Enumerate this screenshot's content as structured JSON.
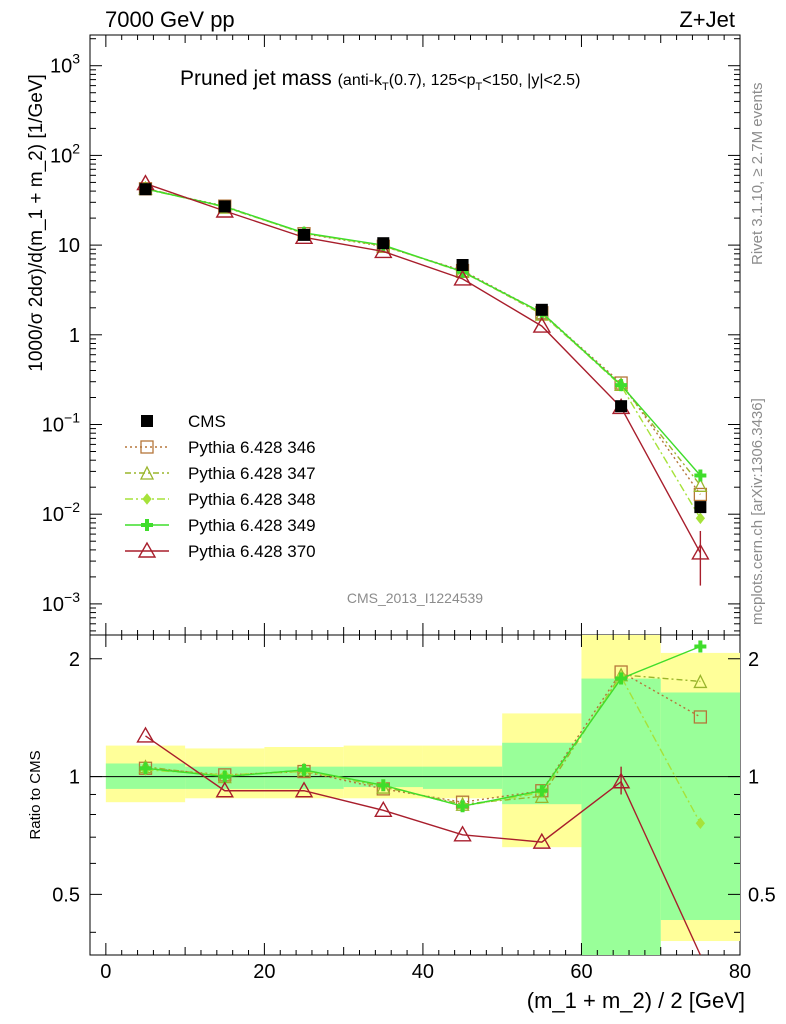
{
  "header": {
    "left": "7000 GeV pp",
    "right": "Z+Jet"
  },
  "side": {
    "rivet": "Rivet 3.1.10, ≥ 2.7M events",
    "mcplots": "mcplots.cern.ch [arXiv:1306.3436]"
  },
  "chart_data": {
    "type": "line",
    "title": "Pruned jet mass",
    "title_cuts": {
      "part1": "(anti-k",
      "sub1": "T",
      "part2": "(0.7), 125<p",
      "sub2": "T",
      "part3": "<150, |y|<2.5)"
    },
    "watermark": "CMS_2013_I1224539",
    "xlabel": "(m_1 + m_2) / 2 [GeV]",
    "ylabel": "1000/σ 2dσ)/d(m_1 + m_2) [1/GeV]",
    "ratio_ylabel": "Ratio to CMS",
    "xlim": [
      -2,
      80
    ],
    "ylim": [
      0.00045,
      2200
    ],
    "ratio_ylim": [
      0.35,
      2.3
    ],
    "log_y": true,
    "x_ticks": [
      "0",
      "20",
      "40",
      "60",
      "80"
    ],
    "y_ticks_main": [
      {
        "v": 0.001,
        "b": "10",
        "e": "−3"
      },
      {
        "v": 0.01,
        "b": "10",
        "e": "−2"
      },
      {
        "v": 0.1,
        "b": "10",
        "e": "−1"
      },
      {
        "v": 1,
        "b": "1",
        "e": ""
      },
      {
        "v": 10,
        "b": "10",
        "e": ""
      },
      {
        "v": 100,
        "b": "10",
        "e": "2"
      },
      {
        "v": 1000,
        "b": "10",
        "e": "3"
      }
    ],
    "ratio_ticks": [
      "0.5",
      "1",
      "2"
    ],
    "x": [
      5,
      15,
      25,
      35,
      45,
      55,
      65,
      75
    ],
    "bin_edges": [
      0,
      10,
      20,
      30,
      40,
      50,
      60,
      70,
      80
    ],
    "data": {
      "name": "CMS",
      "values": [
        42,
        27,
        13,
        10.5,
        6,
        1.9,
        0.16,
        0.012
      ],
      "errors": [
        0.5,
        0.4,
        0.2,
        0.2,
        0.1,
        0.04,
        0.006,
        0.003
      ]
    },
    "uncertainty_bands": {
      "green": [
        [
          0.93,
          1.08
        ],
        [
          0.93,
          1.06
        ],
        [
          0.93,
          1.06
        ],
        [
          0.94,
          1.06
        ],
        [
          0.93,
          1.06
        ],
        [
          0.85,
          1.22
        ],
        [
          0.3,
          1.78
        ],
        [
          0.43,
          1.64
        ]
      ],
      "yellow": [
        [
          0.86,
          1.2
        ],
        [
          0.88,
          1.18
        ],
        [
          0.88,
          1.19
        ],
        [
          0.88,
          1.2
        ],
        [
          0.88,
          1.2
        ],
        [
          0.66,
          1.45
        ],
        [
          0.3,
          2.3
        ],
        [
          0.38,
          2.07
        ]
      ]
    },
    "series": [
      {
        "name": "Pythia 6.428 346",
        "color": "#b5763a",
        "dash": "2,3",
        "marker": "square",
        "values": [
          42.5,
          27.2,
          13.4,
          9.7,
          5.2,
          1.76,
          0.29,
          0.0166
        ],
        "ratio": [
          1.05,
          1.01,
          1.03,
          0.93,
          0.86,
          0.92,
          1.85,
          1.42
        ]
      },
      {
        "name": "Pythia 6.428 347",
        "color": "#9ab52c",
        "dash": "6,3,2,3",
        "marker": "triangle",
        "values": [
          43,
          26.5,
          13.6,
          9.8,
          5.1,
          1.7,
          0.28,
          0.021
        ],
        "ratio": [
          1.06,
          1.0,
          1.04,
          0.94,
          0.85,
          0.89,
          1.82,
          1.75
        ]
      },
      {
        "name": "Pythia 6.428 348",
        "color": "#a6e23a",
        "dash": "8,3,2,3",
        "marker": "diamond",
        "values": [
          42,
          26.8,
          13.5,
          9.9,
          5.0,
          1.75,
          0.27,
          0.009
        ],
        "ratio": [
          1.04,
          1.01,
          1.03,
          0.95,
          0.84,
          0.91,
          1.8,
          0.76
        ]
      },
      {
        "name": "Pythia 6.428 349",
        "color": "#3fdd2b",
        "dash": "",
        "marker": "plus",
        "values": [
          42.3,
          26.9,
          13.7,
          10.0,
          5.05,
          1.77,
          0.275,
          0.027
        ],
        "ratio": [
          1.05,
          1.0,
          1.04,
          0.95,
          0.84,
          0.92,
          1.78,
          2.15
        ]
      },
      {
        "name": "Pythia 6.428 370",
        "color": "#a81e2c",
        "dash": "",
        "marker": "triangle-open",
        "values": [
          48.5,
          24,
          12.2,
          8.5,
          4.2,
          1.25,
          0.155,
          0.0037
        ],
        "ratio": [
          1.27,
          0.92,
          0.92,
          0.82,
          0.71,
          0.68,
          0.97,
          0.3
        ]
      }
    ]
  }
}
